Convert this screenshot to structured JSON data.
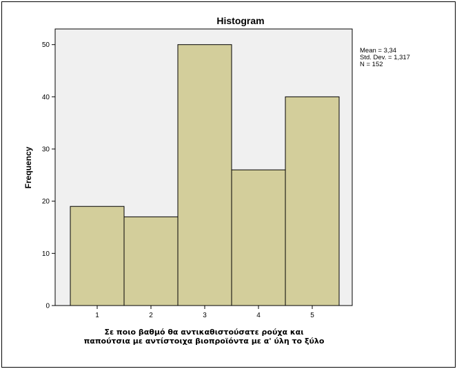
{
  "chart_data": {
    "type": "bar",
    "title": "Histogram",
    "ylabel": "Frequency",
    "xlabel_lines": [
      "Σε ποιο βαθμό θα αντικαθιστούσατε ρούχα και",
      "παπούτσια με αντίστοιχα βιοπροϊόντα με α' ύλη το ξύλο"
    ],
    "categories": [
      "1",
      "2",
      "3",
      "4",
      "5"
    ],
    "values": [
      19,
      17,
      50,
      26,
      40
    ],
    "ylim": [
      0,
      53
    ],
    "yticks": [
      0,
      10,
      20,
      30,
      40,
      50
    ],
    "stats": [
      "Mean = 3,34",
      "Std. Dev. = 1,317",
      "N = 152"
    ],
    "colors": {
      "bar_fill": "#d3ce9b",
      "plot_bg": "#f0f0f0",
      "bar_stroke": "#000000"
    }
  }
}
